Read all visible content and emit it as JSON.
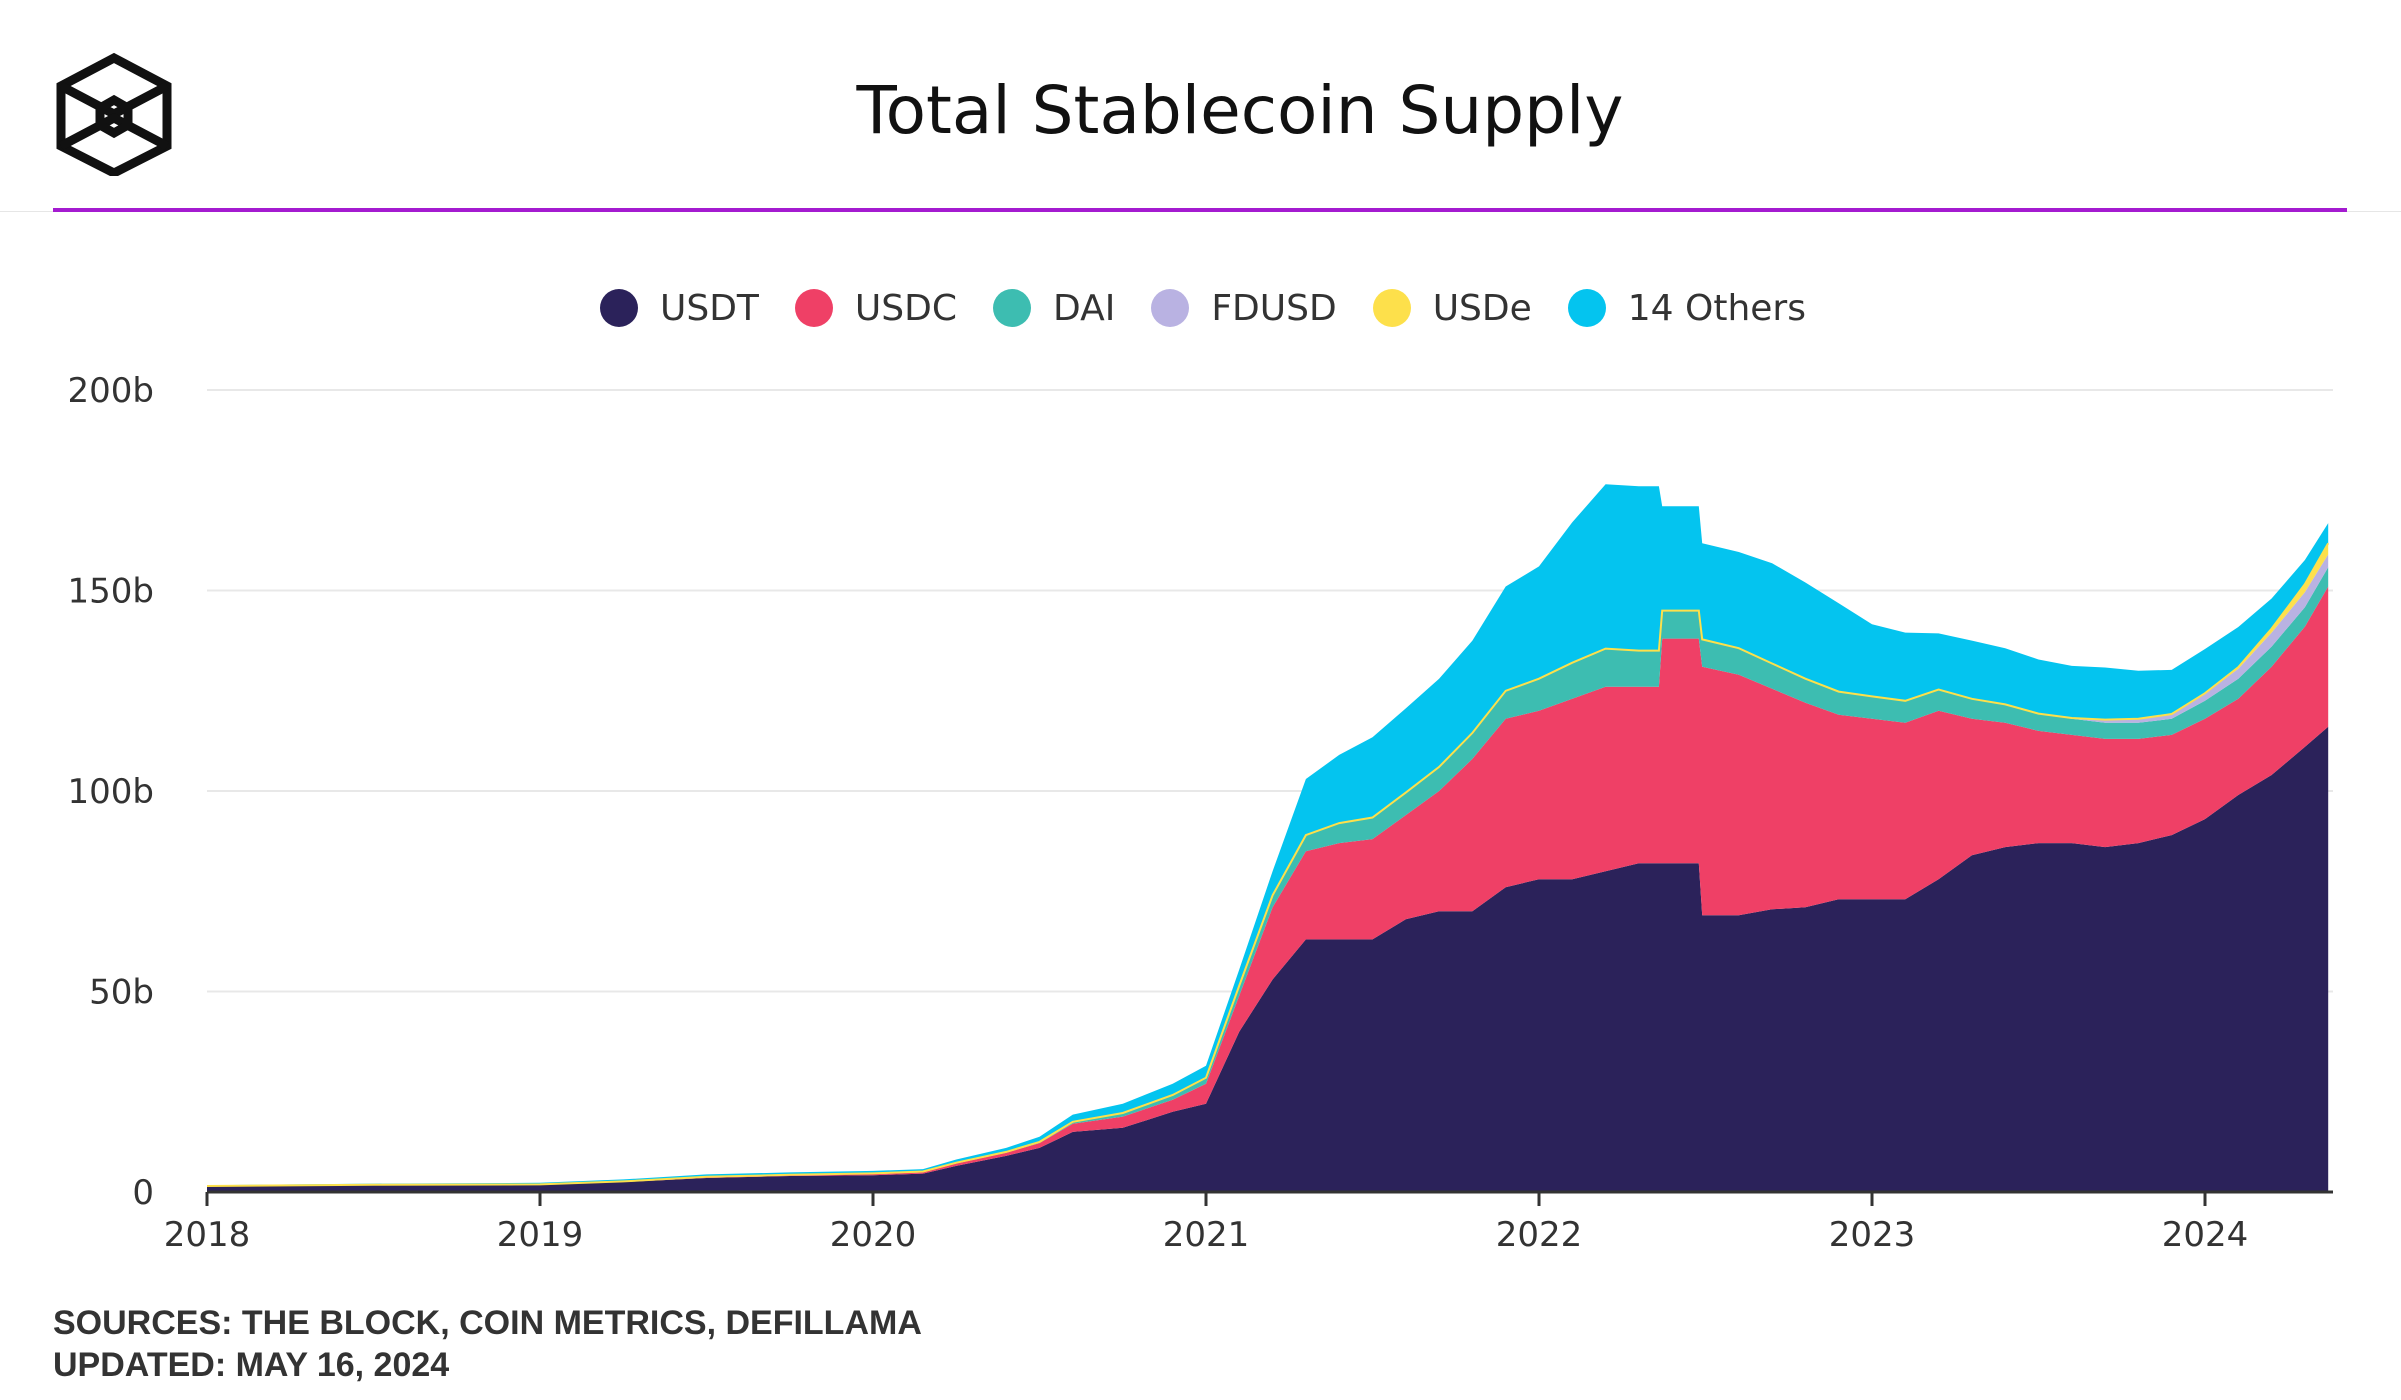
{
  "colors": {
    "accent_rule": "#a41bd0",
    "usdt": "#2b225a",
    "usdc": "#ef4066",
    "dai": "#3dbdb1",
    "fdusd": "#b9b2e2",
    "usde": "#fde04b",
    "others": "#04c4ef"
  },
  "logo": {
    "icon": "the-block-cube-logo"
  },
  "chart_data": {
    "type": "area",
    "stacked": true,
    "title": "Total Stablecoin Supply",
    "xlabel": "",
    "ylabel": "",
    "x_ticks": [
      "2018",
      "2019",
      "2020",
      "2021",
      "2022",
      "2023",
      "2024"
    ],
    "y_ticks": [
      "0",
      "50b",
      "100b",
      "150b",
      "200b"
    ],
    "ylim": [
      0,
      200
    ],
    "y_unit": "billions USD",
    "grid": true,
    "legend_position": "top",
    "x": [
      2018.0,
      2018.5,
      2019.0,
      2019.25,
      2019.5,
      2019.75,
      2020.0,
      2020.15,
      2020.25,
      2020.4,
      2020.5,
      2020.6,
      2020.75,
      2020.9,
      2021.0,
      2021.1,
      2021.2,
      2021.3,
      2021.4,
      2021.5,
      2021.6,
      2021.7,
      2021.8,
      2021.9,
      2022.0,
      2022.1,
      2022.2,
      2022.3,
      2022.36,
      2022.37,
      2022.48,
      2022.49,
      2022.6,
      2022.7,
      2022.8,
      2022.9,
      2023.0,
      2023.1,
      2023.2,
      2023.3,
      2023.4,
      2023.5,
      2023.6,
      2023.7,
      2023.8,
      2023.9,
      2024.0,
      2024.1,
      2024.2,
      2024.3,
      2024.37
    ],
    "series": [
      {
        "name": "USDT",
        "values": [
          1.5,
          1.8,
          1.9,
          2.5,
          3.5,
          4.0,
          4.2,
          4.6,
          6.5,
          9.0,
          11.0,
          15.0,
          16.0,
          20.0,
          22.0,
          40.0,
          53.0,
          63.0,
          63.0,
          63.0,
          68.0,
          70.0,
          70.0,
          76.0,
          78.0,
          78.0,
          80.0,
          82.0,
          82.0,
          82.0,
          82.0,
          69.0,
          69.0,
          70.5,
          71.0,
          73.0,
          73.0,
          73.0,
          78.0,
          84.0,
          86.0,
          87.0,
          87.0,
          86.0,
          87.0,
          89.0,
          93.0,
          99.0,
          104.0,
          111.0,
          116.0
        ]
      },
      {
        "name": "USDC",
        "values": [
          0.0,
          0.0,
          0.0,
          0.1,
          0.2,
          0.2,
          0.3,
          0.3,
          0.6,
          0.8,
          1.2,
          2.0,
          2.8,
          3.0,
          5.0,
          9.0,
          18.0,
          22.0,
          24.0,
          25.0,
          26.0,
          30.0,
          38.0,
          42.0,
          42.0,
          45.0,
          46.0,
          44.0,
          44.0,
          56.0,
          56.0,
          62.0,
          60.0,
          55.0,
          51.0,
          46.0,
          45.0,
          44.0,
          42.0,
          34.0,
          31.0,
          28.0,
          27.0,
          27.0,
          26.0,
          25.0,
          25.0,
          24.0,
          27.0,
          30.0,
          35.0
        ]
      },
      {
        "name": "DAI",
        "values": [
          0.0,
          0.0,
          0.0,
          0.05,
          0.1,
          0.1,
          0.15,
          0.2,
          0.2,
          0.2,
          0.3,
          0.5,
          0.9,
          1.2,
          1.5,
          2.5,
          3.0,
          4.0,
          5.0,
          5.4,
          5.6,
          6.0,
          6.5,
          7.0,
          8.0,
          9.0,
          9.5,
          9.0,
          9.0,
          7.0,
          7.0,
          6.8,
          6.6,
          6.3,
          6.0,
          5.8,
          5.6,
          5.5,
          5.3,
          5.0,
          4.6,
          4.3,
          4.0,
          4.0,
          4.0,
          4.0,
          4.5,
          5.0,
          5.0,
          4.8,
          4.8
        ]
      },
      {
        "name": "FDUSD",
        "values": [
          0,
          0,
          0,
          0,
          0,
          0,
          0,
          0,
          0,
          0,
          0,
          0,
          0,
          0,
          0,
          0,
          0,
          0,
          0,
          0,
          0,
          0,
          0,
          0,
          0,
          0,
          0,
          0,
          0,
          0,
          0,
          0,
          0,
          0,
          0,
          0,
          0,
          0,
          0,
          0,
          0,
          0,
          0.2,
          0.8,
          1.0,
          1.2,
          1.8,
          2.5,
          3.5,
          3.8,
          3.2
        ]
      },
      {
        "name": "USDe",
        "values": [
          0,
          0,
          0,
          0,
          0,
          0,
          0,
          0,
          0,
          0,
          0,
          0,
          0,
          0,
          0,
          0,
          0,
          0,
          0,
          0,
          0,
          0,
          0,
          0,
          0,
          0,
          0,
          0,
          0,
          0,
          0,
          0,
          0,
          0,
          0,
          0,
          0,
          0,
          0,
          0,
          0,
          0,
          0,
          0,
          0,
          0,
          0.1,
          0.4,
          1.0,
          2.0,
          2.8
        ]
      },
      {
        "name": "14 Others",
        "values": [
          0.2,
          0.3,
          0.4,
          0.5,
          0.6,
          0.6,
          0.6,
          0.6,
          0.8,
          1.0,
          1.3,
          1.8,
          2.3,
          2.8,
          3.0,
          4.0,
          6.0,
          14.0,
          17.0,
          20.0,
          21.0,
          22.0,
          23.0,
          26.0,
          28.0,
          35.0,
          41.0,
          41.0,
          41.0,
          26.0,
          26.0,
          24.0,
          24.0,
          25.0,
          24.0,
          22.0,
          18.0,
          17.0,
          14.0,
          14.5,
          14.0,
          13.5,
          13.0,
          13.0,
          12.0,
          11.0,
          11.0,
          10.0,
          7.5,
          6.0,
          5.0
        ]
      }
    ]
  },
  "footer": {
    "sources": "SOURCES: THE BLOCK, COIN METRICS, DEFILLAMA",
    "updated": "UPDATED: MAY 16, 2024"
  }
}
